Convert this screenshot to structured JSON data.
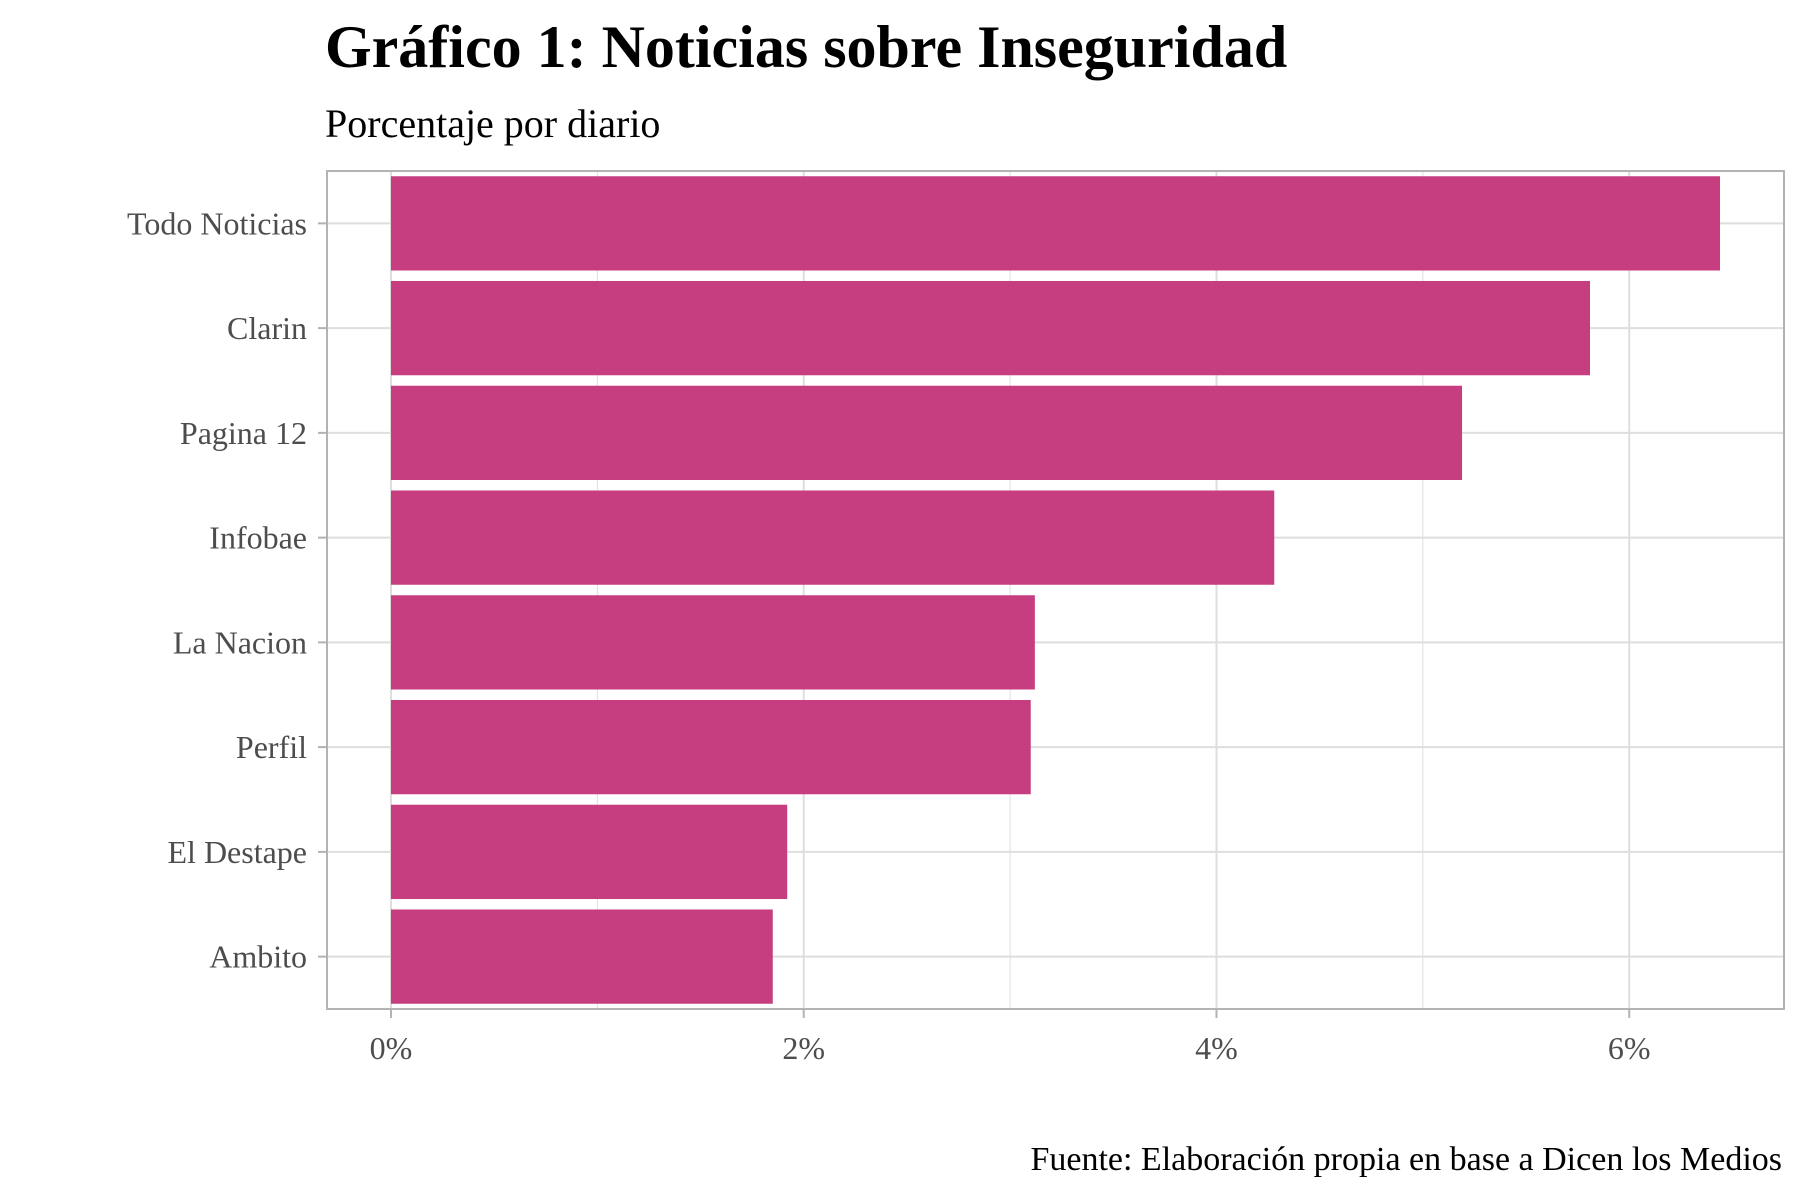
{
  "chart_data": {
    "type": "bar",
    "orientation": "horizontal",
    "title": "Gráfico 1: Noticias sobre Inseguridad",
    "subtitle": "Porcentaje por diario",
    "caption": "Fuente: Elaboración propia en base a Dicen los Medios",
    "categories": [
      "Todo Noticias",
      "Clarin",
      "Pagina 12",
      "Infobae",
      "La Nacion",
      "Perfil",
      "El Destape",
      "Ambito"
    ],
    "values": [
      6.44,
      5.81,
      5.19,
      4.28,
      3.12,
      3.1,
      1.92,
      1.85
    ],
    "value_unit": "%",
    "xlim": [
      -0.31,
      6.75
    ],
    "x_ticks": [
      0,
      2,
      4,
      6
    ],
    "x_tick_labels": [
      "0%",
      "2%",
      "4%",
      "6%"
    ],
    "grid": true,
    "legend": "none",
    "bar_color": "#c73e80",
    "grid_color": "#dedede",
    "border_color": "#b3b3b3"
  }
}
